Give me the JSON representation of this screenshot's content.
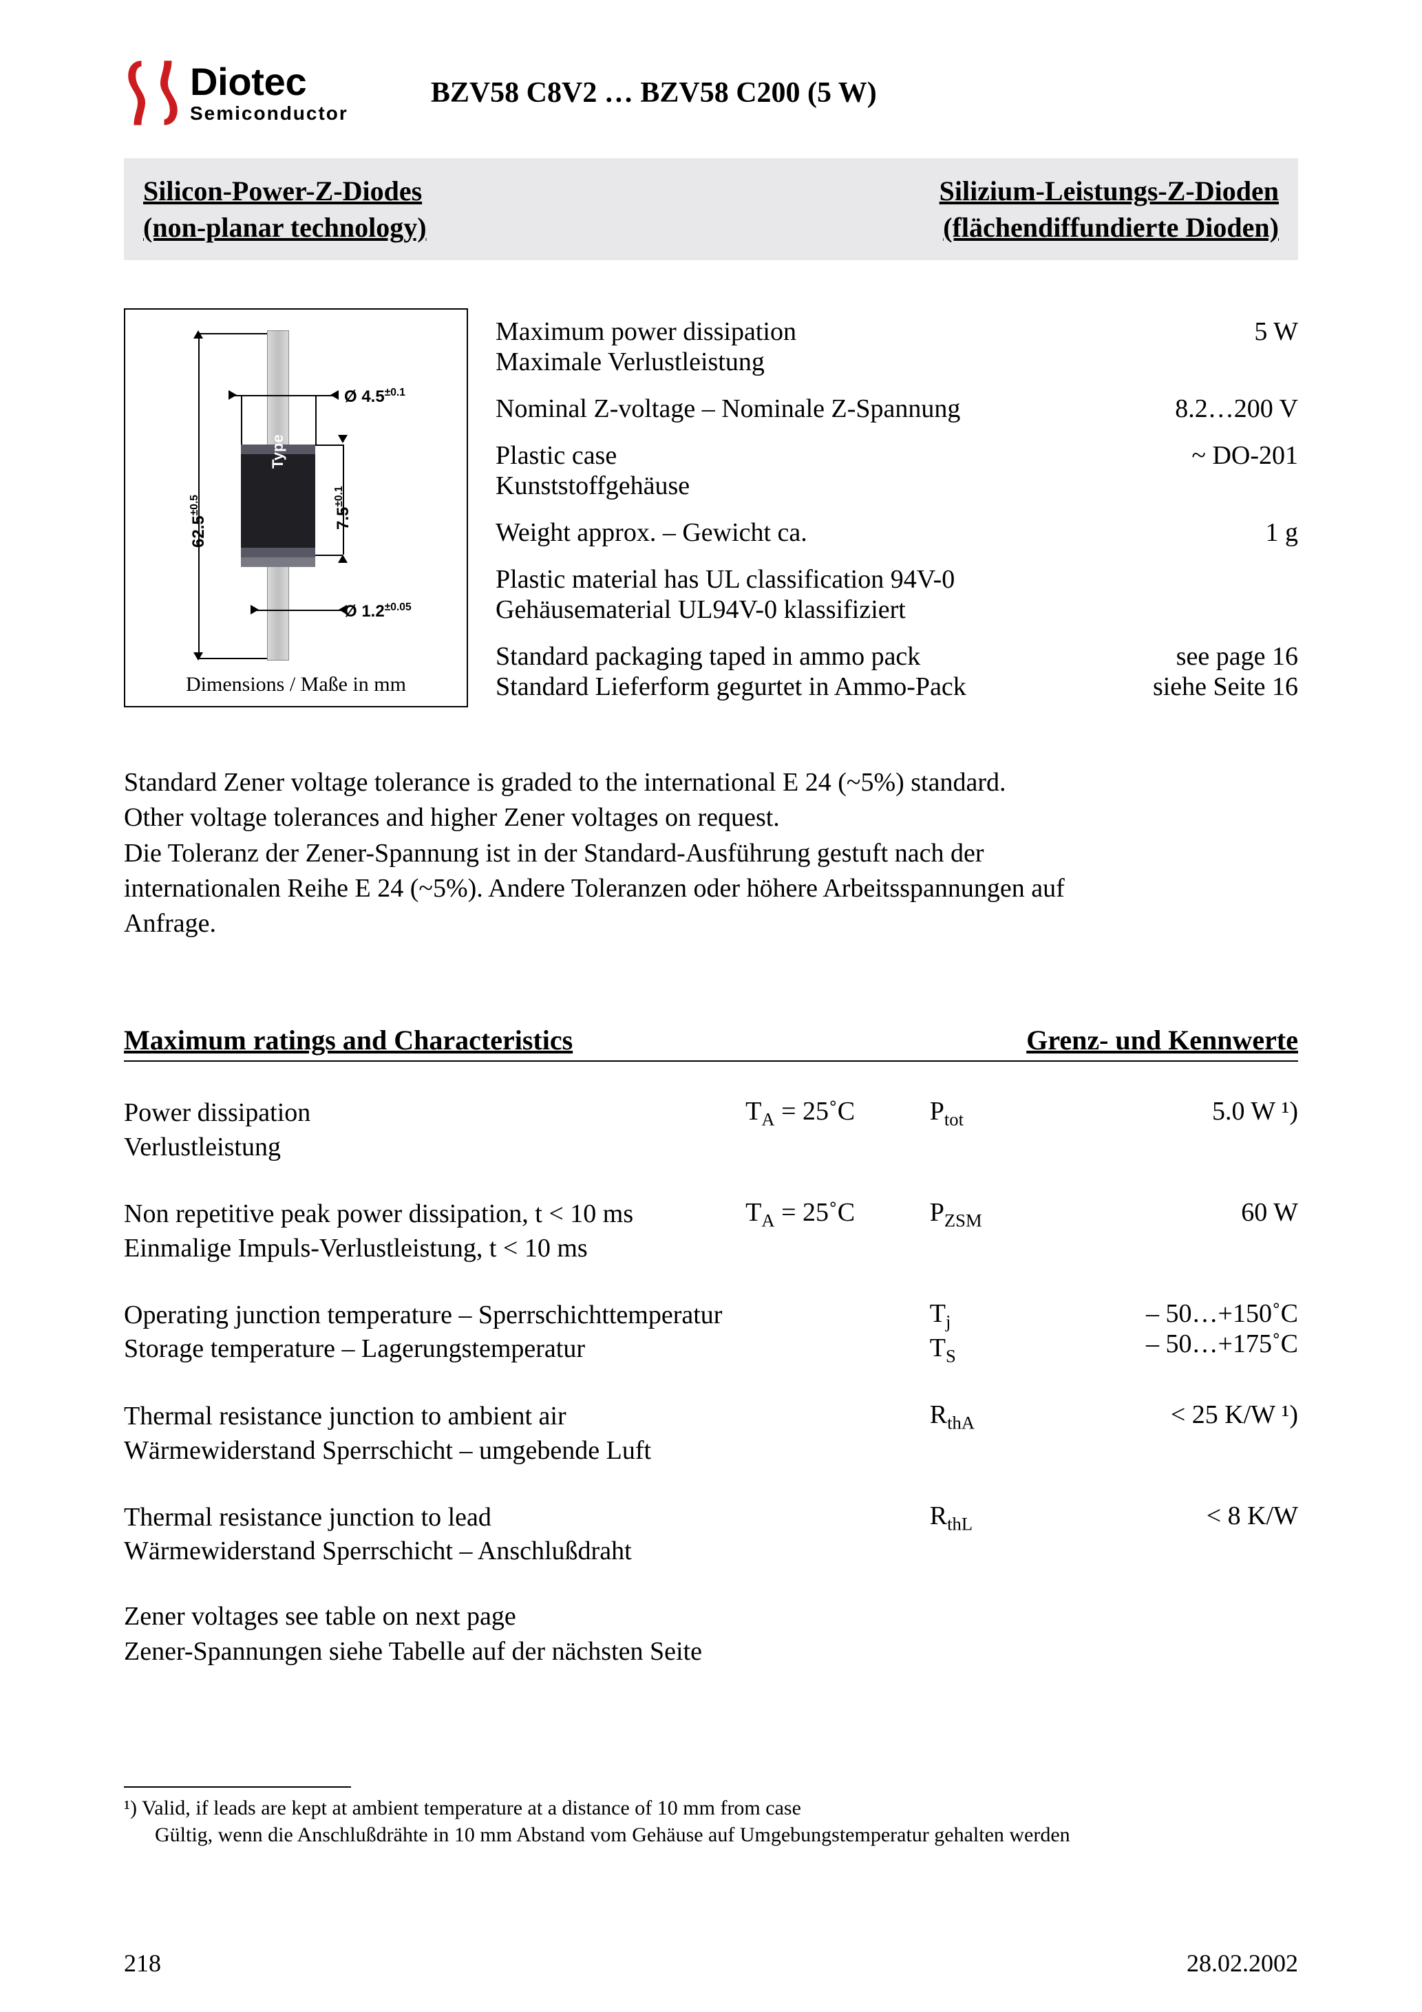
{
  "logo": {
    "name": "Diotec",
    "sub": "Semiconductor",
    "accent": "#cc1c1f"
  },
  "title": "BZV58 C8V2 … BZV58 C200 (5 W)",
  "band": {
    "left1": "Silicon-Power-Z-Diodes",
    "left2": "(non-planar technology)",
    "right1": "Silizium-Leistungs-Z-Dioden",
    "right2": "(flächendiffundierte Dioden)"
  },
  "figure": {
    "caption": "Dimensions / Maße in mm",
    "type_label": "Type",
    "dims": {
      "lead_diam": "Ø 4.5",
      "lead_diam_tol": "±0.1",
      "total_len": "62.5",
      "total_len_tol": "±0.5",
      "body_len": "7.5",
      "body_len_tol": "±0.1",
      "wire_diam": "Ø 1.2",
      "wire_diam_tol": "±0.05"
    }
  },
  "specs": [
    {
      "en": "Maximum power dissipation",
      "de": "Maximale Verlustleistung",
      "val": "5 W"
    },
    {
      "en": "Nominal Z-voltage – Nominale Z-Spannung",
      "de": "",
      "val": "8.2…200 V"
    },
    {
      "en": "Plastic case",
      "de": "Kunststoffgehäuse",
      "val": "~ DO-201"
    },
    {
      "en": "Weight approx. – Gewicht ca.",
      "de": "",
      "val": "1 g"
    },
    {
      "en": "Plastic material has UL classification 94V-0",
      "de": "Gehäusematerial UL94V-0 klassifiziert",
      "val": ""
    },
    {
      "en": "Standard packaging taped in ammo pack",
      "de": "Standard Lieferform gegurtet in Ammo-Pack",
      "val": "see page 16",
      "val_de": "siehe Seite 16"
    }
  ],
  "para": {
    "l1": "Standard Zener voltage tolerance is graded to the international E 24 (~5%) standard.",
    "l2": "Other voltage tolerances and higher Zener voltages on request.",
    "l3": "Die Toleranz der Zener-Spannung ist in der Standard-Ausführung gestuft nach der",
    "l4": "internationalen Reihe E 24 (~5%). Andere Toleranzen oder höhere Arbeitsspannungen auf",
    "l5": "Anfrage."
  },
  "ratings": {
    "head_left": "Maximum ratings and Characteristics",
    "head_right": "Grenz- und Kennwerte",
    "rows": [
      {
        "desc_en": "Power dissipation",
        "desc_de": "Verlustleistung",
        "cond": "T_A = 25˚C",
        "sym": "P_tot",
        "val": "5.0 W ¹)"
      },
      {
        "desc_en": "Non repetitive peak power dissipation, t < 10 ms",
        "desc_de": "Einmalige Impuls-Verlustleistung, t < 10 ms",
        "cond": "T_A = 25˚C",
        "sym": "P_ZSM",
        "val": "60 W"
      },
      {
        "desc_en": "Operating junction temperature – Sperrschichttemperatur",
        "desc_de": "Storage temperature – Lagerungstemperatur",
        "cond": "",
        "sym": "T_j|T_S",
        "val": "– 50…+150˚C|– 50…+175˚C"
      },
      {
        "desc_en": "Thermal resistance junction to ambient air",
        "desc_de": "Wärmewiderstand Sperrschicht – umgebende Luft",
        "cond": "",
        "sym": "R_thA",
        "val": "< 25 K/W ¹)"
      },
      {
        "desc_en": "Thermal resistance junction to lead",
        "desc_de": "Wärmewiderstand Sperrschicht – Anschlußdraht",
        "cond": "",
        "sym": "R_thL",
        "val": "< 8 K/W"
      }
    ],
    "tail_en": "Zener voltages see table on next page",
    "tail_de": "Zener-Spannungen siehe Tabelle auf der nächsten Seite"
  },
  "footnote": {
    "l1": "¹)   Valid, if leads are kept at ambient temperature at a distance of 10 mm from case",
    "l2": "      Gültig, wenn die Anschlußdrähte in 10 mm Abstand vom Gehäuse auf Umgebungstemperatur gehalten werden"
  },
  "footer": {
    "page": "218",
    "date": "28.02.2002"
  }
}
